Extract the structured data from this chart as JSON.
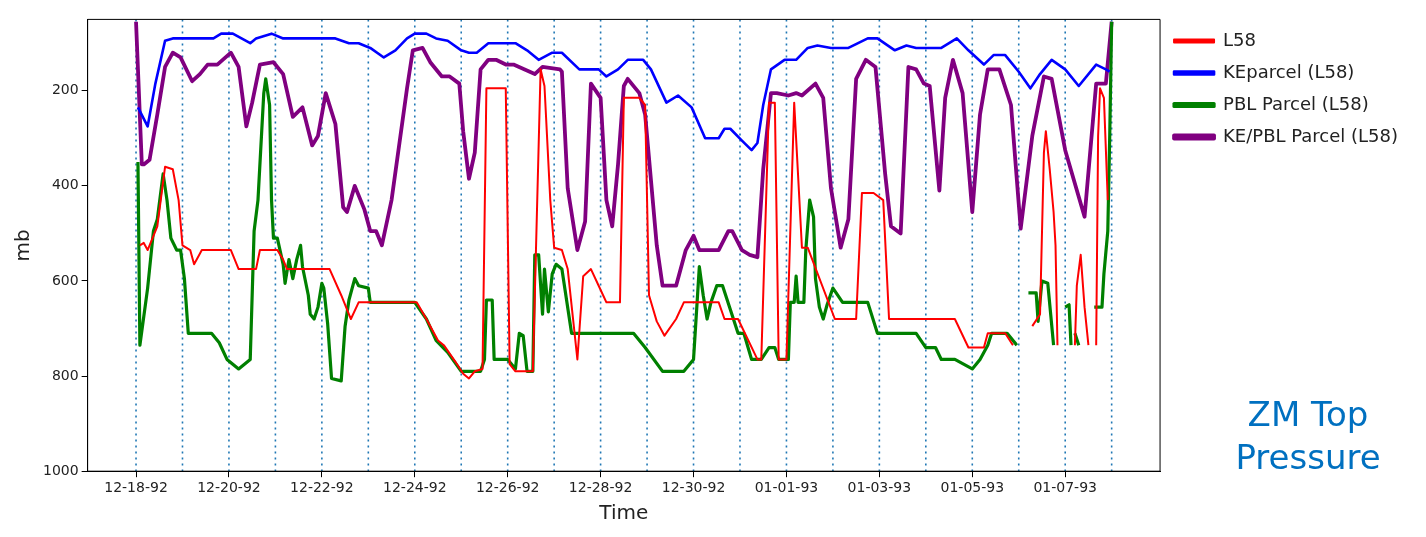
{
  "chart_data": {
    "type": "line",
    "xlabel": "Time",
    "ylabel": "mb",
    "annotations": [
      "ZM Top Pressure"
    ],
    "xlim": [
      "1992-12-16T23:00",
      "1993-01-09T01:00"
    ],
    "xticks": [
      {
        "value": "1992-12-18",
        "label": "12-18-92"
      },
      {
        "value": "1992-12-20",
        "label": "12-20-92"
      },
      {
        "value": "1992-12-22",
        "label": "12-22-92"
      },
      {
        "value": "1992-12-24",
        "label": "12-24-92"
      },
      {
        "value": "1992-12-26",
        "label": "12-26-92"
      },
      {
        "value": "1992-12-28",
        "label": "12-28-92"
      },
      {
        "value": "1992-12-30",
        "label": "12-30-92"
      },
      {
        "value": "1993-01-01",
        "label": "01-01-93"
      },
      {
        "value": "1993-01-03",
        "label": "01-03-93"
      },
      {
        "value": "1993-01-05",
        "label": "01-05-93"
      },
      {
        "value": "1993-01-07",
        "label": "01-07-93"
      }
    ],
    "ylim": [
      1000,
      50
    ],
    "yticks": [
      200,
      400,
      600,
      800,
      1000
    ],
    "legend": "right",
    "marker": "none",
    "series": [
      {
        "name": "L58",
        "color": "#ff0000",
        "x": [
          "1992-12-18T02:00",
          "1992-12-18T04:00",
          "1992-12-18T06:00",
          "1992-12-18T11:00",
          "1992-12-18T15:00",
          "1992-12-18T19:00",
          "1992-12-18T22:00",
          "1992-12-19T00:00",
          "1992-12-19T04:00",
          "1992-12-19T06:00",
          "1992-12-19T10:00",
          "1992-12-20T01:00",
          "1992-12-20T05:00",
          "1992-12-20T14:00",
          "1992-12-20T16:00",
          "1992-12-21T01:00",
          "1992-12-21T04:00",
          "1992-12-21T06:00",
          "1992-12-22T04:00",
          "1992-12-22T10:00",
          "1992-12-22T15:00",
          "1992-12-22T19:00",
          "1992-12-24T01:00",
          "1992-12-24T06:00",
          "1992-12-24T12:00",
          "1992-12-24T15:00",
          "1992-12-24T21:00",
          "1992-12-25T01:00",
          "1992-12-25T04:00",
          "1992-12-25T07:00",
          "1992-12-25T11:00",
          "1992-12-25T13:00",
          "1992-12-25T23:00",
          "1992-12-26T01:00",
          "1992-12-26T04:00",
          "1992-12-26T13:00",
          "1992-12-26T17:00",
          "1992-12-26T19:00",
          "1992-12-26T22:00",
          "1992-12-27T00:00",
          "1992-12-27T04:00",
          "1992-12-27T07:00",
          "1992-12-27T12:00",
          "1992-12-27T15:00",
          "1992-12-27T19:00",
          "1992-12-27T23:00",
          "1992-12-28T03:00",
          "1992-12-28T10:00",
          "1992-12-28T12:00",
          "1992-12-28T20:00",
          "1992-12-28T23:00",
          "1992-12-29T01:00",
          "1992-12-29T05:00",
          "1992-12-29T09:00",
          "1992-12-29T15:00",
          "1992-12-29T19:00",
          "1992-12-30T13:00",
          "1992-12-30T16:00",
          "1992-12-30T23:00",
          "1992-12-31T09:00",
          "1992-12-31T11:00",
          "1992-12-31T15:00",
          "1992-12-31T18:00",
          "1992-12-31T20:00",
          "1993-01-01T00:00",
          "1993-01-01T04:00",
          "1993-01-01T08:00",
          "1993-01-01T11:00",
          "1993-01-02T01:00",
          "1993-01-02T12:00",
          "1993-01-02T15:00",
          "1993-01-02T21:00",
          "1993-01-03T02:00",
          "1993-01-03T05:00",
          "1993-01-04T15:00",
          "1993-01-04T22:00",
          "1993-01-05T06:00",
          "1993-01-05T08:00",
          "1993-01-05T17:00",
          "1993-01-05T21:00",
          "1993-01-06T03:00",
          "1993-01-06T07:00",
          "1993-01-06T11:00",
          "1993-01-06T13:00",
          "1993-01-06T14:00",
          "1993-01-06T16:00",
          "1993-01-06T18:00",
          "1993-01-06T19:00",
          "1993-01-06T20:00",
          "1993-01-07T00:00",
          "1993-01-07T05:00",
          "1993-01-07T06:00",
          "1993-01-07T08:00",
          "1993-01-07T10:00",
          "1993-01-07T12:00",
          "1993-01-07T14:00",
          "1993-01-07T16:00",
          "1993-01-07T17:00",
          "1993-01-07T18:00",
          "1993-01-07T20:00",
          "1993-01-07T22:00"
        ],
        "values": [
          525,
          520,
          535,
          485,
          360,
          365,
          430,
          525,
          535,
          565,
          535,
          535,
          575,
          575,
          535,
          535,
          555,
          575,
          575,
          630,
          680,
          645,
          645,
          680,
          725,
          735,
          770,
          795,
          805,
          790,
          785,
          195,
          195,
          775,
          790,
          790,
          155,
          190,
          430,
          530,
          535,
          575,
          765,
          590,
          575,
          610,
          645,
          645,
          215,
          215,
          230,
          630,
          685,
          715,
          680,
          645,
          645,
          680,
          680,
          765,
          765,
          225,
          225,
          765,
          765,
          225,
          530,
          530,
          680,
          680,
          415,
          415,
          430,
          680,
          680,
          740,
          740,
          710,
          710,
          735,
          null,
          695,
          670,
          330,
          285,
          365,
          455,
          525,
          735,
          null,
          735,
          610,
          545,
          655,
          735,
          null,
          735,
          295,
          195,
          215,
          430
        ]
      },
      {
        "name": "KEparcel (L58)",
        "color": "#0000ff",
        "x": [
          "1992-12-18T01:00",
          "1992-12-18T06:00",
          "1992-12-18T10:00",
          "1992-12-18T15:00",
          "1992-12-18T19:00",
          "1992-12-19T16:00",
          "1992-12-19T20:00",
          "1992-12-20T02:00",
          "1992-12-20T11:00",
          "1992-12-20T14:00",
          "1992-12-20T22:00",
          "1992-12-21T04:00",
          "1992-12-22T07:00",
          "1992-12-22T14:00",
          "1992-12-22T19:00",
          "1992-12-23T01:00",
          "1992-12-23T08:00",
          "1992-12-23T14:00",
          "1992-12-23T20:00",
          "1992-12-24T00:00",
          "1992-12-24T06:00",
          "1992-12-24T11:00",
          "1992-12-24T17:00",
          "1992-12-25T00:00",
          "1992-12-25T04:00",
          "1992-12-25T08:00",
          "1992-12-25T14:00",
          "1992-12-25T23:00",
          "1992-12-26T04:00",
          "1992-12-26T10:00",
          "1992-12-26T16:00",
          "1992-12-26T23:00",
          "1992-12-27T04:00",
          "1992-12-27T13:00",
          "1992-12-27T23:00",
          "1992-12-28T03:00",
          "1992-12-28T09:00",
          "1992-12-28T14:00",
          "1992-12-28T22:00",
          "1992-12-29T02:00",
          "1992-12-29T10:00",
          "1992-12-29T16:00",
          "1992-12-29T23:00",
          "1992-12-30T06:00",
          "1992-12-30T13:00",
          "1992-12-30T16:00",
          "1992-12-30T19:00",
          "1992-12-31T01:00",
          "1992-12-31T06:00",
          "1992-12-31T09:00",
          "1992-12-31T12:00",
          "1992-12-31T16:00",
          "1992-12-31T23:00",
          "1993-01-01T05:00",
          "1993-01-01T11:00",
          "1993-01-01T16:00",
          "1993-01-01T23:00",
          "1993-01-02T08:00",
          "1993-01-02T18:00",
          "1993-01-02T23:00",
          "1993-01-03T08:00",
          "1993-01-03T14:00",
          "1993-01-03T19:00",
          "1993-01-04T08:00",
          "1993-01-04T16:00",
          "1993-01-04T22:00",
          "1993-01-05T06:00",
          "1993-01-05T11:00",
          "1993-01-05T17:00",
          "1993-01-06T00:00",
          "1993-01-06T06:00",
          "1993-01-06T11:00",
          "1993-01-06T17:00",
          "1993-01-07T00:00",
          "1993-01-07T07:00",
          "1993-01-07T16:00",
          "1993-01-07T21:00",
          "1993-01-07T23:00"
        ],
        "values": [
          235,
          275,
          185,
          95,
          90,
          90,
          80,
          80,
          100,
          90,
          80,
          90,
          90,
          100,
          100,
          110,
          130,
          115,
          90,
          80,
          80,
          90,
          95,
          115,
          120,
          120,
          100,
          100,
          100,
          115,
          135,
          120,
          120,
          155,
          155,
          170,
          155,
          135,
          135,
          155,
          225,
          210,
          235,
          300,
          300,
          280,
          280,
          305,
          325,
          310,
          230,
          155,
          135,
          135,
          110,
          105,
          110,
          110,
          90,
          90,
          115,
          105,
          110,
          110,
          90,
          115,
          145,
          125,
          125,
          160,
          195,
          165,
          135,
          155,
          190,
          145,
          155,
          160
        ]
      },
      {
        "name": "PBL Parcel (L58)",
        "color": "#008000",
        "x": [
          "1992-12-18T01:00",
          "1992-12-18T02:00",
          "1992-12-18T06:00",
          "1992-12-18T09:00",
          "1992-12-18T11:00",
          "1992-12-18T14:00",
          "1992-12-18T16:00",
          "1992-12-18T18:00",
          "1992-12-18T21:00",
          "1992-12-18T23:00",
          "1992-12-19T01:00",
          "1992-12-19T03:00",
          "1992-12-19T15:00",
          "1992-12-19T19:00",
          "1992-12-19T23:00",
          "1992-12-20T05:00",
          "1992-12-20T11:00",
          "1992-12-20T13:00",
          "1992-12-20T15:00",
          "1992-12-20T18:00",
          "1992-12-20T19:00",
          "1992-12-20T21:00",
          "1992-12-20T22:00",
          "1992-12-20T23:00",
          "1992-12-21T01:00",
          "1992-12-21T04:00",
          "1992-12-21T05:00",
          "1992-12-21T07:00",
          "1992-12-21T09:00",
          "1992-12-21T11:00",
          "1992-12-21T13:00",
          "1992-12-21T14:00",
          "1992-12-21T17:00",
          "1992-12-21T18:00",
          "1992-12-21T20:00",
          "1992-12-21T22:00",
          "1992-12-22T00:00",
          "1992-12-22T01:00",
          "1992-12-22T03:00",
          "1992-12-22T05:00",
          "1992-12-22T10:00",
          "1992-12-22T12:00",
          "1992-12-22T14:00",
          "1992-12-22T17:00",
          "1992-12-22T19:00",
          "1992-12-23T00:00",
          "1992-12-23T01:00",
          "1992-12-24T00:00",
          "1992-12-24T06:00",
          "1992-12-24T11:00",
          "1992-12-24T17:00",
          "1992-12-25T00:00",
          "1992-12-25T10:00",
          "1992-12-25T12:00",
          "1992-12-25T13:00",
          "1992-12-25T16:00",
          "1992-12-25T17:00",
          "1992-12-26T00:00",
          "1992-12-26T04:00",
          "1992-12-26T06:00",
          "1992-12-26T08:00",
          "1992-12-26T10:00",
          "1992-12-26T13:00",
          "1992-12-26T14:00",
          "1992-12-26T16:00",
          "1992-12-26T18:00",
          "1992-12-26T19:00",
          "1992-12-26T21:00",
          "1992-12-26T23:00",
          "1992-12-27T01:00",
          "1992-12-27T04:00",
          "1992-12-27T09:00",
          "1992-12-28T17:00",
          "1992-12-28T23:00",
          "1992-12-29T08:00",
          "1992-12-29T19:00",
          "1992-12-30T00:00",
          "1992-12-30T03:00",
          "1992-12-30T05:00",
          "1992-12-30T07:00",
          "1992-12-30T09:00",
          "1992-12-30T12:00",
          "1992-12-30T15:00",
          "1992-12-30T23:00",
          "1992-12-31T02:00",
          "1992-12-31T06:00",
          "1992-12-31T11:00",
          "1992-12-31T15:00",
          "1992-12-31T18:00",
          "1992-12-31T20:00",
          "1993-01-01T01:00",
          "1993-01-01T02:00",
          "1993-01-01T04:00",
          "1993-01-01T05:00",
          "1993-01-01T06:00",
          "1993-01-01T09:00",
          "1993-01-01T10:00",
          "1993-01-01T12:00",
          "1993-01-01T14:00",
          "1993-01-01T15:00",
          "1993-01-01T17:00",
          "1993-01-01T19:00",
          "1993-01-01T21:00",
          "1993-01-02T00:00",
          "1993-01-02T05:00",
          "1993-01-02T18:00",
          "1993-01-02T23:00",
          "1993-01-03T19:00",
          "1993-01-04T00:00",
          "1993-01-04T05:00",
          "1993-01-04T08:00",
          "1993-01-04T15:00",
          "1993-01-05T00:00",
          "1993-01-05T04:00",
          "1993-01-05T08:00",
          "1993-01-05T10:00",
          "1993-01-05T18:00",
          "1993-01-05T23:00",
          "1993-01-06T02:00",
          "1993-01-06T05:00",
          "1993-01-06T09:00",
          "1993-01-06T10:00",
          "1993-01-06T12:00",
          "1993-01-06T15:00",
          "1993-01-06T18:00",
          "1993-01-06T21:00",
          "1993-01-07T00:00",
          "1993-01-07T02:00",
          "1993-01-07T03:00",
          "1993-01-07T04:00",
          "1993-01-07T05:00",
          "1993-01-07T07:00",
          "1993-01-07T10:00",
          "1993-01-07T15:00",
          "1993-01-07T19:00",
          "1993-01-07T20:00",
          "1993-01-07T22:00",
          "1993-01-07T23:00",
          "1993-01-08T00:00"
        ],
        "values": [
          350,
          735,
          615,
          495,
          470,
          375,
          430,
          510,
          535,
          535,
          595,
          710,
          710,
          730,
          765,
          785,
          765,
          495,
          430,
          205,
          175,
          230,
          430,
          510,
          510,
          565,
          605,
          555,
          595,
          555,
          525,
          570,
          630,
          670,
          680,
          655,
          605,
          615,
          690,
          805,
          810,
          695,
          640,
          595,
          610,
          615,
          645,
          645,
          680,
          725,
          750,
          790,
          790,
          765,
          640,
          640,
          765,
          765,
          785,
          710,
          715,
          790,
          790,
          545,
          545,
          670,
          575,
          665,
          585,
          565,
          575,
          710,
          710,
          740,
          790,
          790,
          765,
          570,
          630,
          680,
          645,
          610,
          610,
          710,
          710,
          765,
          765,
          740,
          740,
          765,
          765,
          645,
          645,
          590,
          645,
          645,
          535,
          430,
          465,
          595,
          655,
          680,
          650,
          615,
          645,
          645,
          710,
          710,
          740,
          740,
          765,
          765,
          785,
          765,
          735,
          710,
          710,
          735,
          null,
          625,
          625,
          685,
          600,
          605,
          735,
          null,
          655,
          650,
          735,
          null,
          710,
          735,
          null,
          655,
          655,
          585,
          495,
          295,
          55
        ]
      },
      {
        "name": "KE/PBL Parcel (L58)",
        "color": "#800080",
        "x": [
          "1992-12-18T00:00",
          "1992-12-18T03:00",
          "1992-12-18T04:00",
          "1992-12-18T07:00",
          "1992-12-18T11:00",
          "1992-12-18T15:00",
          "1992-12-18T19:00",
          "1992-12-18T23:00",
          "1992-12-19T05:00",
          "1992-12-19T09:00",
          "1992-12-19T13:00",
          "1992-12-19T18:00",
          "1992-12-20T01:00",
          "1992-12-20T05:00",
          "1992-12-20T09:00",
          "1992-12-20T12:00",
          "1992-12-20T16:00",
          "1992-12-20T23:00",
          "1992-12-21T04:00",
          "1992-12-21T09:00",
          "1992-12-21T14:00",
          "1992-12-21T19:00",
          "1992-12-21T22:00",
          "1992-12-22T02:00",
          "1992-12-22T07:00",
          "1992-12-22T11:00",
          "1992-12-22T13:00",
          "1992-12-22T17:00",
          "1992-12-22T22:00",
          "1992-12-23T01:00",
          "1992-12-23T04:00",
          "1992-12-23T07:00",
          "1992-12-23T12:00",
          "1992-12-23T20:00",
          "1992-12-23T23:00",
          "1992-12-24T04:00",
          "1992-12-24T08:00",
          "1992-12-24T14:00",
          "1992-12-24T18:00",
          "1992-12-24T23:00",
          "1992-12-25T01:00",
          "1992-12-25T04:00",
          "1992-12-25T07:00",
          "1992-12-25T10:00",
          "1992-12-25T14:00",
          "1992-12-25T18:00",
          "1992-12-25T23:00",
          "1992-12-26T03:00",
          "1992-12-26T14:00",
          "1992-12-26T18:00",
          "1992-12-27T03:00",
          "1992-12-27T04:00",
          "1992-12-27T07:00",
          "1992-12-27T12:00",
          "1992-12-27T16:00",
          "1992-12-27T19:00",
          "1992-12-28T00:00",
          "1992-12-28T03:00",
          "1992-12-28T06:00",
          "1992-12-28T09:00",
          "1992-12-28T12:00",
          "1992-12-28T14:00",
          "1992-12-28T20:00",
          "1992-12-28T23:00",
          "1992-12-29T05:00",
          "1992-12-29T08:00",
          "1992-12-29T15:00",
          "1992-12-29T20:00",
          "1992-12-30T00:00",
          "1992-12-30T03:00",
          "1992-12-30T13:00",
          "1992-12-30T18:00",
          "1992-12-30T20:00",
          "1992-12-31T01:00",
          "1992-12-31T05:00",
          "1992-12-31T09:00",
          "1992-12-31T12:00",
          "1992-12-31T16:00",
          "1992-12-31T19:00",
          "1993-01-01T01:00",
          "1993-01-01T05:00",
          "1993-01-01T08:00",
          "1993-01-01T15:00",
          "1993-01-01T19:00",
          "1993-01-01T23:00",
          "1993-01-02T04:00",
          "1993-01-02T08:00",
          "1993-01-02T12:00",
          "1993-01-02T17:00",
          "1993-01-02T22:00",
          "1993-01-03T03:00",
          "1993-01-03T06:00",
          "1993-01-03T11:00",
          "1993-01-03T15:00",
          "1993-01-03T19:00",
          "1993-01-03T23:00",
          "1993-01-04T02:00",
          "1993-01-04T07:00",
          "1993-01-04T10:00",
          "1993-01-04T14:00",
          "1993-01-04T19:00",
          "1993-01-05T00:00",
          "1993-01-05T04:00",
          "1993-01-05T08:00",
          "1993-01-05T14:00",
          "1993-01-05T20:00",
          "1993-01-06T01:00",
          "1993-01-06T07:00",
          "1993-01-06T13:00",
          "1993-01-06T17:00",
          "1993-01-07T00:00",
          "1993-01-07T10:00",
          "1993-01-07T16:00",
          "1993-01-07T21:00",
          "1993-01-08T00:00"
        ],
        "values": [
          55,
          355,
          355,
          345,
          250,
          150,
          120,
          130,
          180,
          165,
          145,
          145,
          120,
          150,
          275,
          225,
          145,
          140,
          165,
          255,
          235,
          315,
          295,
          205,
          270,
          445,
          455,
          400,
          450,
          495,
          495,
          525,
          430,
          195,
          115,
          110,
          140,
          170,
          170,
          185,
          285,
          385,
          330,
          155,
          135,
          135,
          145,
          145,
          165,
          150,
          155,
          160,
          405,
          535,
          475,
          185,
          215,
          430,
          485,
          355,
          190,
          175,
          205,
          250,
          525,
          610,
          610,
          535,
          505,
          535,
          535,
          495,
          495,
          535,
          545,
          550,
          365,
          205,
          205,
          210,
          205,
          210,
          185,
          215,
          405,
          530,
          470,
          175,
          135,
          150,
          375,
          485,
          500,
          150,
          155,
          185,
          190,
          410,
          215,
          135,
          205,
          455,
          250,
          155,
          155,
          230,
          490,
          295,
          170,
          175,
          325,
          465,
          185,
          185,
          55
        ]
      }
    ],
    "ref_lines": [
      {
        "axis": "x",
        "value": "1992-12-18",
        "color": "#1f77b4",
        "line_style": "dotted"
      },
      {
        "axis": "x",
        "value": "1992-12-19",
        "color": "#1f77b4",
        "line_style": "dotted"
      },
      {
        "axis": "x",
        "value": "1992-12-20",
        "color": "#1f77b4",
        "line_style": "dotted"
      },
      {
        "axis": "x",
        "value": "1992-12-21",
        "color": "#1f77b4",
        "line_style": "dotted"
      },
      {
        "axis": "x",
        "value": "1992-12-22",
        "color": "#1f77b4",
        "line_style": "dotted"
      },
      {
        "axis": "x",
        "value": "1992-12-23",
        "color": "#1f77b4",
        "line_style": "dotted"
      },
      {
        "axis": "x",
        "value": "1992-12-24",
        "color": "#1f77b4",
        "line_style": "dotted"
      },
      {
        "axis": "x",
        "value": "1992-12-25",
        "color": "#1f77b4",
        "line_style": "dotted"
      },
      {
        "axis": "x",
        "value": "1992-12-26",
        "color": "#1f77b4",
        "line_style": "dotted"
      },
      {
        "axis": "x",
        "value": "1992-12-27",
        "color": "#1f77b4",
        "line_style": "dotted"
      },
      {
        "axis": "x",
        "value": "1992-12-28",
        "color": "#1f77b4",
        "line_style": "dotted"
      },
      {
        "axis": "x",
        "value": "1992-12-29",
        "color": "#1f77b4",
        "line_style": "dotted"
      },
      {
        "axis": "x",
        "value": "1992-12-30",
        "color": "#1f77b4",
        "line_style": "dotted"
      },
      {
        "axis": "x",
        "value": "1992-12-31",
        "color": "#1f77b4",
        "line_style": "dotted"
      },
      {
        "axis": "x",
        "value": "1993-01-01",
        "color": "#1f77b4",
        "line_style": "dotted"
      },
      {
        "axis": "x",
        "value": "1993-01-02",
        "color": "#1f77b4",
        "line_style": "dotted"
      },
      {
        "axis": "x",
        "value": "1993-01-03",
        "color": "#1f77b4",
        "line_style": "dotted"
      },
      {
        "axis": "x",
        "value": "1993-01-04",
        "color": "#1f77b4",
        "line_style": "dotted"
      },
      {
        "axis": "x",
        "value": "1993-01-05",
        "color": "#1f77b4",
        "line_style": "dotted"
      },
      {
        "axis": "x",
        "value": "1993-01-06",
        "color": "#1f77b4",
        "line_style": "dotted"
      },
      {
        "axis": "x",
        "value": "1993-01-07",
        "color": "#1f77b4",
        "line_style": "dotted"
      },
      {
        "axis": "x",
        "value": "1993-01-08",
        "color": "#1f77b4",
        "line_style": "dotted"
      }
    ]
  }
}
